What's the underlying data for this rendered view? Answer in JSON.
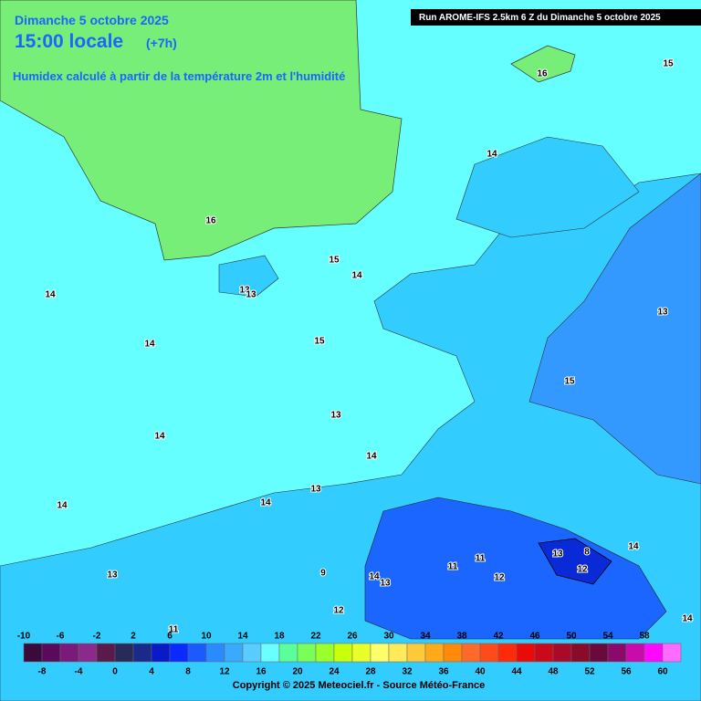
{
  "header": {
    "date": "Dimanche 5 octobre 2025",
    "time": "15:00 locale",
    "lead": "(+7h)",
    "subtitle": "Humidex calculé à partir de la température 2m et l'humidité",
    "run": "Run AROME-IFS 2.5km 6 Z du Dimanche 5 octobre 2025"
  },
  "contour_labels": [
    "16",
    "15",
    "14",
    "16",
    "15",
    "14",
    "13",
    "14",
    "15",
    "13",
    "14",
    "15",
    "13",
    "14",
    "14",
    "14",
    "13",
    "14",
    "14",
    "13",
    "8",
    "11",
    "11",
    "12",
    "9",
    "13",
    "14",
    "13",
    "12",
    "12",
    "11",
    "14",
    "13"
  ],
  "legend": {
    "upper_labels": [
      "-10",
      "-6",
      "-2",
      "2",
      "6",
      "10",
      "14",
      "18",
      "22",
      "26",
      "30",
      "34",
      "38",
      "42",
      "46",
      "50",
      "54",
      "58"
    ],
    "lower_labels": [
      "-8",
      "-4",
      "0",
      "4",
      "8",
      "12",
      "16",
      "20",
      "24",
      "28",
      "32",
      "36",
      "40",
      "44",
      "48",
      "52",
      "56",
      "60"
    ],
    "colors": [
      "#3a0a3a",
      "#5a0a5a",
      "#7a1a7a",
      "#8a2a8a",
      "#5a1a4a",
      "#2a2a5a",
      "#1a2a8a",
      "#0a1ac8",
      "#0a2aff",
      "#1a5aff",
      "#2a8aff",
      "#3aaaff",
      "#5accff",
      "#6affff",
      "#5aff9a",
      "#7aff5a",
      "#9aff2a",
      "#caff0a",
      "#eaff2a",
      "#ffff6a",
      "#ffea5a",
      "#ffca3a",
      "#ffaa1a",
      "#ff8a0a",
      "#ff6a2a",
      "#ff4a1a",
      "#ff2a0a",
      "#ea0a0a",
      "#ca0a1a",
      "#aa0a2a",
      "#8a0a2a",
      "#6a0a3a",
      "#8a0a6a",
      "#ca0aaa",
      "#ff0aff",
      "#ff6aff"
    ]
  },
  "footer": {
    "copyright": "Copyright © 2025 Meteociel.fr - Source Météo-France"
  }
}
